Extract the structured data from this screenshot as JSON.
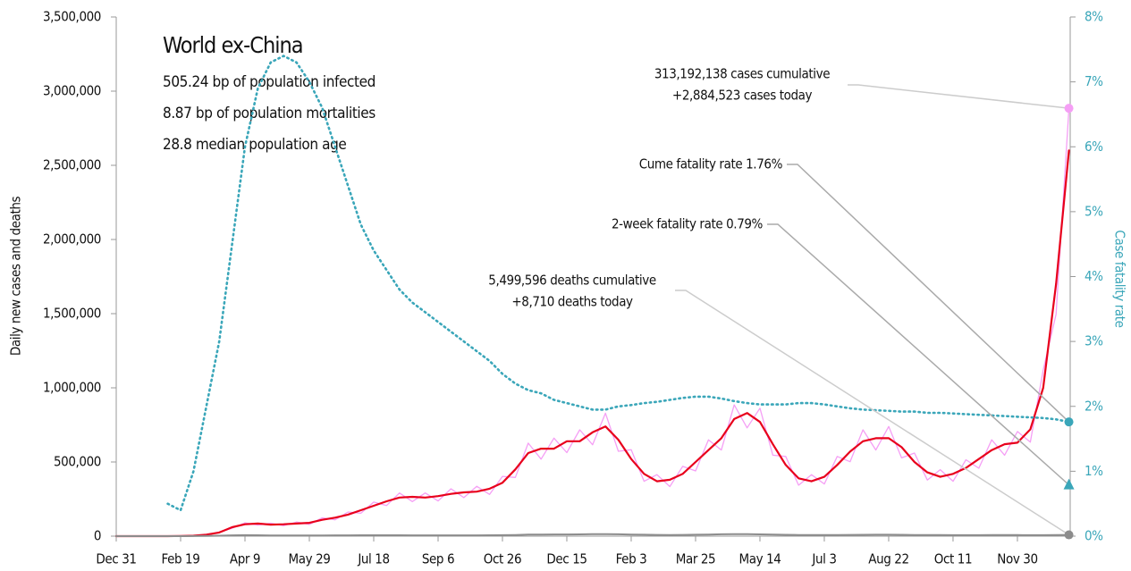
{
  "chart_data": {
    "type": "line",
    "title": "World ex-China",
    "subtitle_lines": [
      "505.24 bp of population infected",
      "8.87 bp of population mortalities",
      "28.8 median population age"
    ],
    "ylabel": "Daily new cases and deaths",
    "y2label": "Case fatality rate",
    "x": [
      0,
      10,
      20,
      30,
      40,
      50,
      60,
      70,
      80,
      90,
      100,
      110,
      120,
      130,
      140,
      150,
      160,
      170,
      180,
      190,
      200,
      210,
      220,
      230,
      240,
      250,
      260,
      270,
      280,
      290,
      300,
      310,
      320,
      330,
      340,
      350,
      360,
      370,
      380,
      390,
      400,
      410,
      420,
      430,
      440,
      450,
      460,
      470,
      480,
      490,
      500,
      510,
      520,
      530,
      540,
      550,
      560,
      570,
      580,
      590,
      600,
      610,
      620,
      630,
      640,
      650,
      660,
      670,
      680,
      690,
      700,
      710,
      720,
      730,
      740
    ],
    "xlim": [
      0,
      741
    ],
    "xticks": [
      {
        "value": 0,
        "label": "Dec 31"
      },
      {
        "value": 50,
        "label": "Feb 19"
      },
      {
        "value": 100,
        "label": "Apr 9"
      },
      {
        "value": 150,
        "label": "May 29"
      },
      {
        "value": 200,
        "label": "Jul 18"
      },
      {
        "value": 250,
        "label": "Sep 6"
      },
      {
        "value": 300,
        "label": "Oct 26"
      },
      {
        "value": 350,
        "label": "Dec 15"
      },
      {
        "value": 400,
        "label": "Feb 3"
      },
      {
        "value": 450,
        "label": "Mar 25"
      },
      {
        "value": 500,
        "label": "May 14"
      },
      {
        "value": 550,
        "label": "Jul 3"
      },
      {
        "value": 600,
        "label": "Aug 22"
      },
      {
        "value": 650,
        "label": "Oct 11"
      },
      {
        "value": 700,
        "label": "Nov 30"
      }
    ],
    "ylim": [
      0,
      3500000
    ],
    "yticks": [
      0,
      {
        "value": 500000,
        "label": "500,000"
      },
      {
        "value": 1000000,
        "label": "1,000,000"
      },
      {
        "value": 1500000,
        "label": "1,500,000"
      },
      {
        "value": 2000000,
        "label": "2,000,000"
      },
      {
        "value": 2500000,
        "label": "2,500,000"
      },
      {
        "value": 3000000,
        "label": "3,000,000"
      },
      {
        "value": 3500000,
        "label": "3,500,000"
      }
    ],
    "y2lim": [
      0,
      8
    ],
    "y2ticks": [
      {
        "value": 0,
        "label": "0%"
      },
      {
        "value": 1,
        "label": "1%"
      },
      {
        "value": 2,
        "label": "2%"
      },
      {
        "value": 3,
        "label": "3%"
      },
      {
        "value": 4,
        "label": "4%"
      },
      {
        "value": 5,
        "label": "5%"
      },
      {
        "value": 6,
        "label": "6%"
      },
      {
        "value": 7,
        "label": "7%"
      },
      {
        "value": 8,
        "label": "8%"
      }
    ],
    "grid": false,
    "series": [
      {
        "color": "#f59ff5",
        "width": 1.3,
        "dash": "none",
        "axis": "y",
        "values": [
          0,
          0,
          0,
          0,
          0,
          880,
          3360,
          8800,
          28000,
          52800,
          89600,
          74800,
          87360,
          70400,
          95200,
          79200,
          123200,
          110000,
          162400,
          154000,
          229600,
          206800,
          291200,
          233200,
          291200,
          237600,
          319200,
          259600,
          336000,
          281600,
          403200,
          396000,
          627200,
          519200,
          660800,
          563200,
          716800,
          616000,
          828800,
          572000,
          582400,
          369600,
          414400,
          334400,
          470400,
          440000,
          649600,
          580800,
          884800,
          730400,
          862400,
          545600,
          537600,
          343200,
          414400,
          352000,
          537600,
          501600,
          716800,
          580800,
          739200,
          528000,
          560000,
          378400,
          448000,
          369600,
          515200,
          457600,
          649600,
          545600,
          705600,
          633600,
          1120000,
          1496000,
          2884523
        ]
      },
      {
        "color": "#e8001c",
        "width": 2.2,
        "dash": "none",
        "axis": "y",
        "values": [
          0,
          0,
          0,
          0,
          0,
          1000,
          3000,
          10000,
          25000,
          60000,
          80000,
          85000,
          78000,
          80000,
          85000,
          90000,
          110000,
          125000,
          145000,
          175000,
          205000,
          235000,
          260000,
          265000,
          260000,
          270000,
          285000,
          295000,
          300000,
          320000,
          360000,
          450000,
          560000,
          590000,
          590000,
          640000,
          640000,
          700000,
          740000,
          650000,
          520000,
          420000,
          370000,
          380000,
          420000,
          500000,
          580000,
          660000,
          790000,
          830000,
          770000,
          620000,
          480000,
          390000,
          370000,
          400000,
          480000,
          570000,
          640000,
          660000,
          660000,
          600000,
          500000,
          430000,
          400000,
          420000,
          460000,
          520000,
          580000,
          620000,
          630000,
          720000,
          1000000,
          1700000,
          2600000
        ]
      },
      {
        "color": "#8c8c8c",
        "width": 2,
        "dash": "none",
        "axis": "y",
        "values": [
          0,
          0,
          0,
          0,
          0,
          200,
          500,
          1500,
          3000,
          5500,
          6500,
          6000,
          5000,
          4500,
          4500,
          4500,
          4800,
          5200,
          5500,
          5800,
          6000,
          6000,
          5800,
          5500,
          5300,
          5200,
          5200,
          5400,
          5600,
          6000,
          6500,
          8000,
          10000,
          11000,
          11500,
          11500,
          12000,
          13000,
          13500,
          12500,
          11000,
          9500,
          8500,
          8000,
          8500,
          9500,
          11000,
          12500,
          13500,
          13000,
          12000,
          10500,
          9000,
          8000,
          7500,
          7500,
          8000,
          8500,
          9000,
          9500,
          9500,
          9000,
          8000,
          7500,
          7000,
          6800,
          6800,
          6900,
          7000,
          7100,
          7000,
          6800,
          6700,
          7000,
          8710
        ]
      },
      {
        "color": "#3aa6b9",
        "width": 2.6,
        "dash": "1.5 4",
        "axis": "y2",
        "values": [
          null,
          null,
          null,
          null,
          0.5,
          0.4,
          1.0,
          2.0,
          3.0,
          4.5,
          6.0,
          6.9,
          7.3,
          7.4,
          7.3,
          7.0,
          6.6,
          6.0,
          5.4,
          4.8,
          4.4,
          4.1,
          3.8,
          3.6,
          3.45,
          3.3,
          3.15,
          3.0,
          2.85,
          2.7,
          2.5,
          2.35,
          2.25,
          2.2,
          2.1,
          2.05,
          2.0,
          1.95,
          1.95,
          2.0,
          2.02,
          2.05,
          2.07,
          2.1,
          2.13,
          2.15,
          2.15,
          2.12,
          2.08,
          2.05,
          2.03,
          2.03,
          2.03,
          2.05,
          2.05,
          2.03,
          2.0,
          1.97,
          1.95,
          1.94,
          1.93,
          1.92,
          1.92,
          1.9,
          1.9,
          1.89,
          1.88,
          1.87,
          1.86,
          1.85,
          1.84,
          1.83,
          1.82,
          1.8,
          1.76
        ]
      }
    ],
    "end_points": [
      {
        "value": 2884523,
        "axis": "y",
        "shape": "circle",
        "color": "#f59ff5"
      },
      {
        "value": 1.76,
        "axis": "y2",
        "shape": "circle",
        "color": "#3aa6b9"
      },
      {
        "value": 0.79,
        "axis": "y2",
        "shape": "triangle",
        "color": "#3aa6b9"
      },
      {
        "value": 8710,
        "axis": "y",
        "shape": "circle",
        "color": "#8c8c8c"
      }
    ],
    "annotations": [
      {
        "lines": [
          "313,192,138 cases cumulative",
          "+2,884,523 cases today"
        ],
        "point": 0
      },
      {
        "lines": [
          "Cume fatality rate 1.76%"
        ],
        "point": 1
      },
      {
        "lines": [
          "2-week fatality rate 0.79%"
        ],
        "point": 2
      },
      {
        "lines": [
          "5,499,596 deaths cumulative",
          "+8,710 deaths today"
        ],
        "point": 3
      }
    ]
  }
}
